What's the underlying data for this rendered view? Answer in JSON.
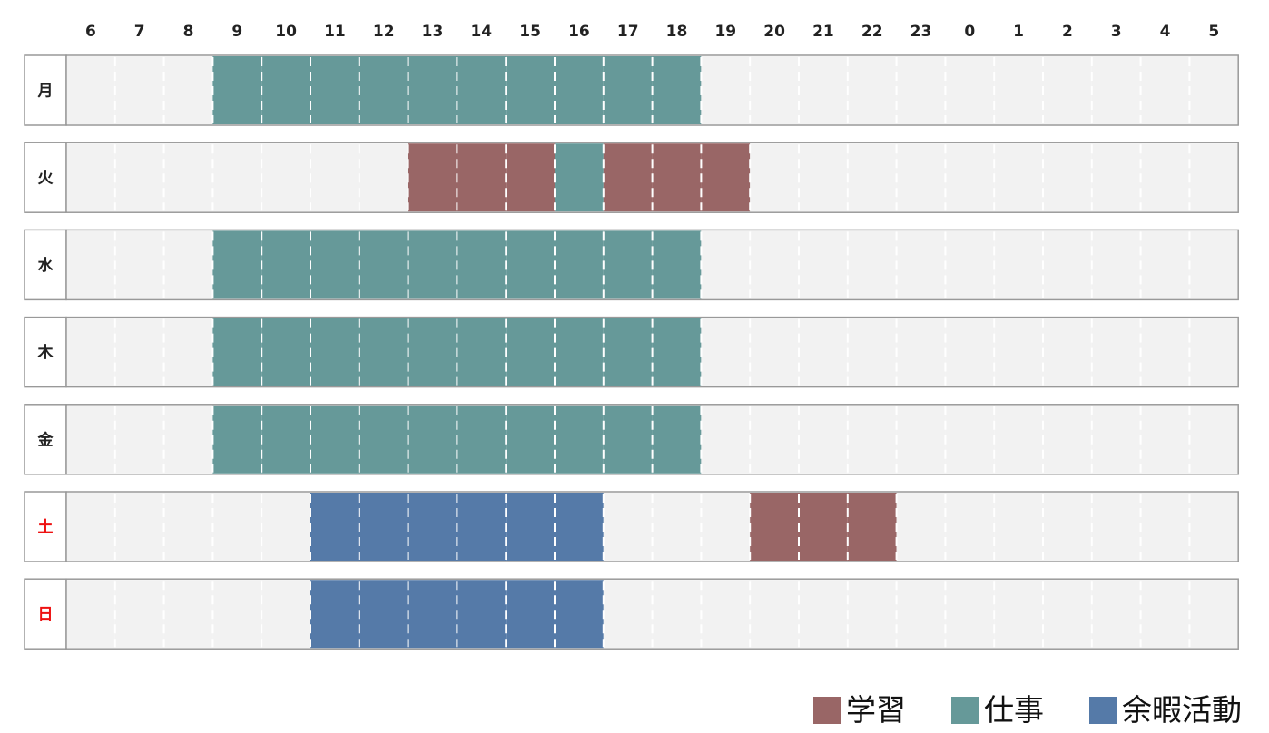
{
  "chart_data": {
    "type": "heatmap",
    "hours": [
      "6",
      "7",
      "8",
      "9",
      "10",
      "11",
      "12",
      "13",
      "14",
      "15",
      "16",
      "17",
      "18",
      "19",
      "20",
      "21",
      "22",
      "23",
      "0",
      "1",
      "2",
      "3",
      "4",
      "5"
    ],
    "days": [
      {
        "label": "月",
        "color": "#222222",
        "cells": {
          "9": "work",
          "10": "work",
          "11": "work",
          "12": "work",
          "13": "work",
          "14": "work",
          "15": "work",
          "16": "work",
          "17": "work",
          "18": "work"
        }
      },
      {
        "label": "火",
        "color": "#222222",
        "cells": {
          "13": "study",
          "14": "study",
          "15": "study",
          "16": "work",
          "17": "study",
          "18": "study",
          "19": "study"
        }
      },
      {
        "label": "水",
        "color": "#222222",
        "cells": {
          "9": "work",
          "10": "work",
          "11": "work",
          "12": "work",
          "13": "work",
          "14": "work",
          "15": "work",
          "16": "work",
          "17": "work",
          "18": "work"
        }
      },
      {
        "label": "木",
        "color": "#222222",
        "cells": {
          "9": "work",
          "10": "work",
          "11": "work",
          "12": "work",
          "13": "work",
          "14": "work",
          "15": "work",
          "16": "work",
          "17": "work",
          "18": "work"
        }
      },
      {
        "label": "金",
        "color": "#222222",
        "cells": {
          "9": "work",
          "10": "work",
          "11": "work",
          "12": "work",
          "13": "work",
          "14": "work",
          "15": "work",
          "16": "work",
          "17": "work",
          "18": "work"
        }
      },
      {
        "label": "土",
        "color": "#ee1111",
        "cells": {
          "11": "leisure",
          "12": "leisure",
          "13": "leisure",
          "14": "leisure",
          "15": "leisure",
          "16": "leisure",
          "20": "study",
          "21": "study",
          "22": "study"
        }
      },
      {
        "label": "日",
        "color": "#ee1111",
        "cells": {
          "11": "leisure",
          "12": "leisure",
          "13": "leisure",
          "14": "leisure",
          "15": "leisure",
          "16": "leisure"
        }
      }
    ],
    "categories": [
      {
        "key": "study",
        "label": "学習",
        "color": "#996666"
      },
      {
        "key": "work",
        "label": "仕事",
        "color": "#669999"
      },
      {
        "key": "leisure",
        "label": "余暇活動",
        "color": "#557aa8"
      }
    ],
    "empty_color": "#f2f2f2",
    "legend_position": "bottom-right"
  }
}
